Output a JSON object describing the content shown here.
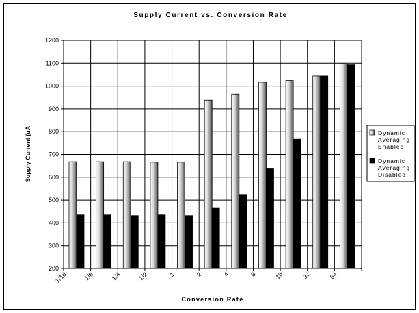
{
  "chart_data": {
    "type": "bar",
    "title": "Supply Current vs. Conversion Rate",
    "xlabel": "Conversion Rate",
    "ylabel": "Supply Current (uA",
    "categories": [
      "1/16",
      "1/8",
      "1/4",
      "1/2",
      "1",
      "2",
      "4",
      "8",
      "16",
      "32",
      "64"
    ],
    "ylim": [
      200,
      1200
    ],
    "yticks": [
      200,
      300,
      400,
      500,
      600,
      700,
      800,
      900,
      1000,
      1100,
      1200
    ],
    "grid": true,
    "legend_position": "right",
    "series": [
      {
        "name": "Dynamic Averaging Enabled",
        "legend_lines": [
          "Dynamic",
          "Averaging",
          "Enabled"
        ],
        "color": "#bfbfbf",
        "values": [
          668,
          668,
          668,
          666,
          666,
          938,
          965,
          1017,
          1024,
          1044,
          1097
        ]
      },
      {
        "name": "Dynamic Averaging Disabled",
        "legend_lines": [
          "Dynamic",
          "Averaging",
          "Disabled"
        ],
        "color": "#000000",
        "values": [
          435,
          435,
          432,
          435,
          432,
          467,
          525,
          637,
          767,
          1044,
          1093
        ]
      }
    ]
  }
}
